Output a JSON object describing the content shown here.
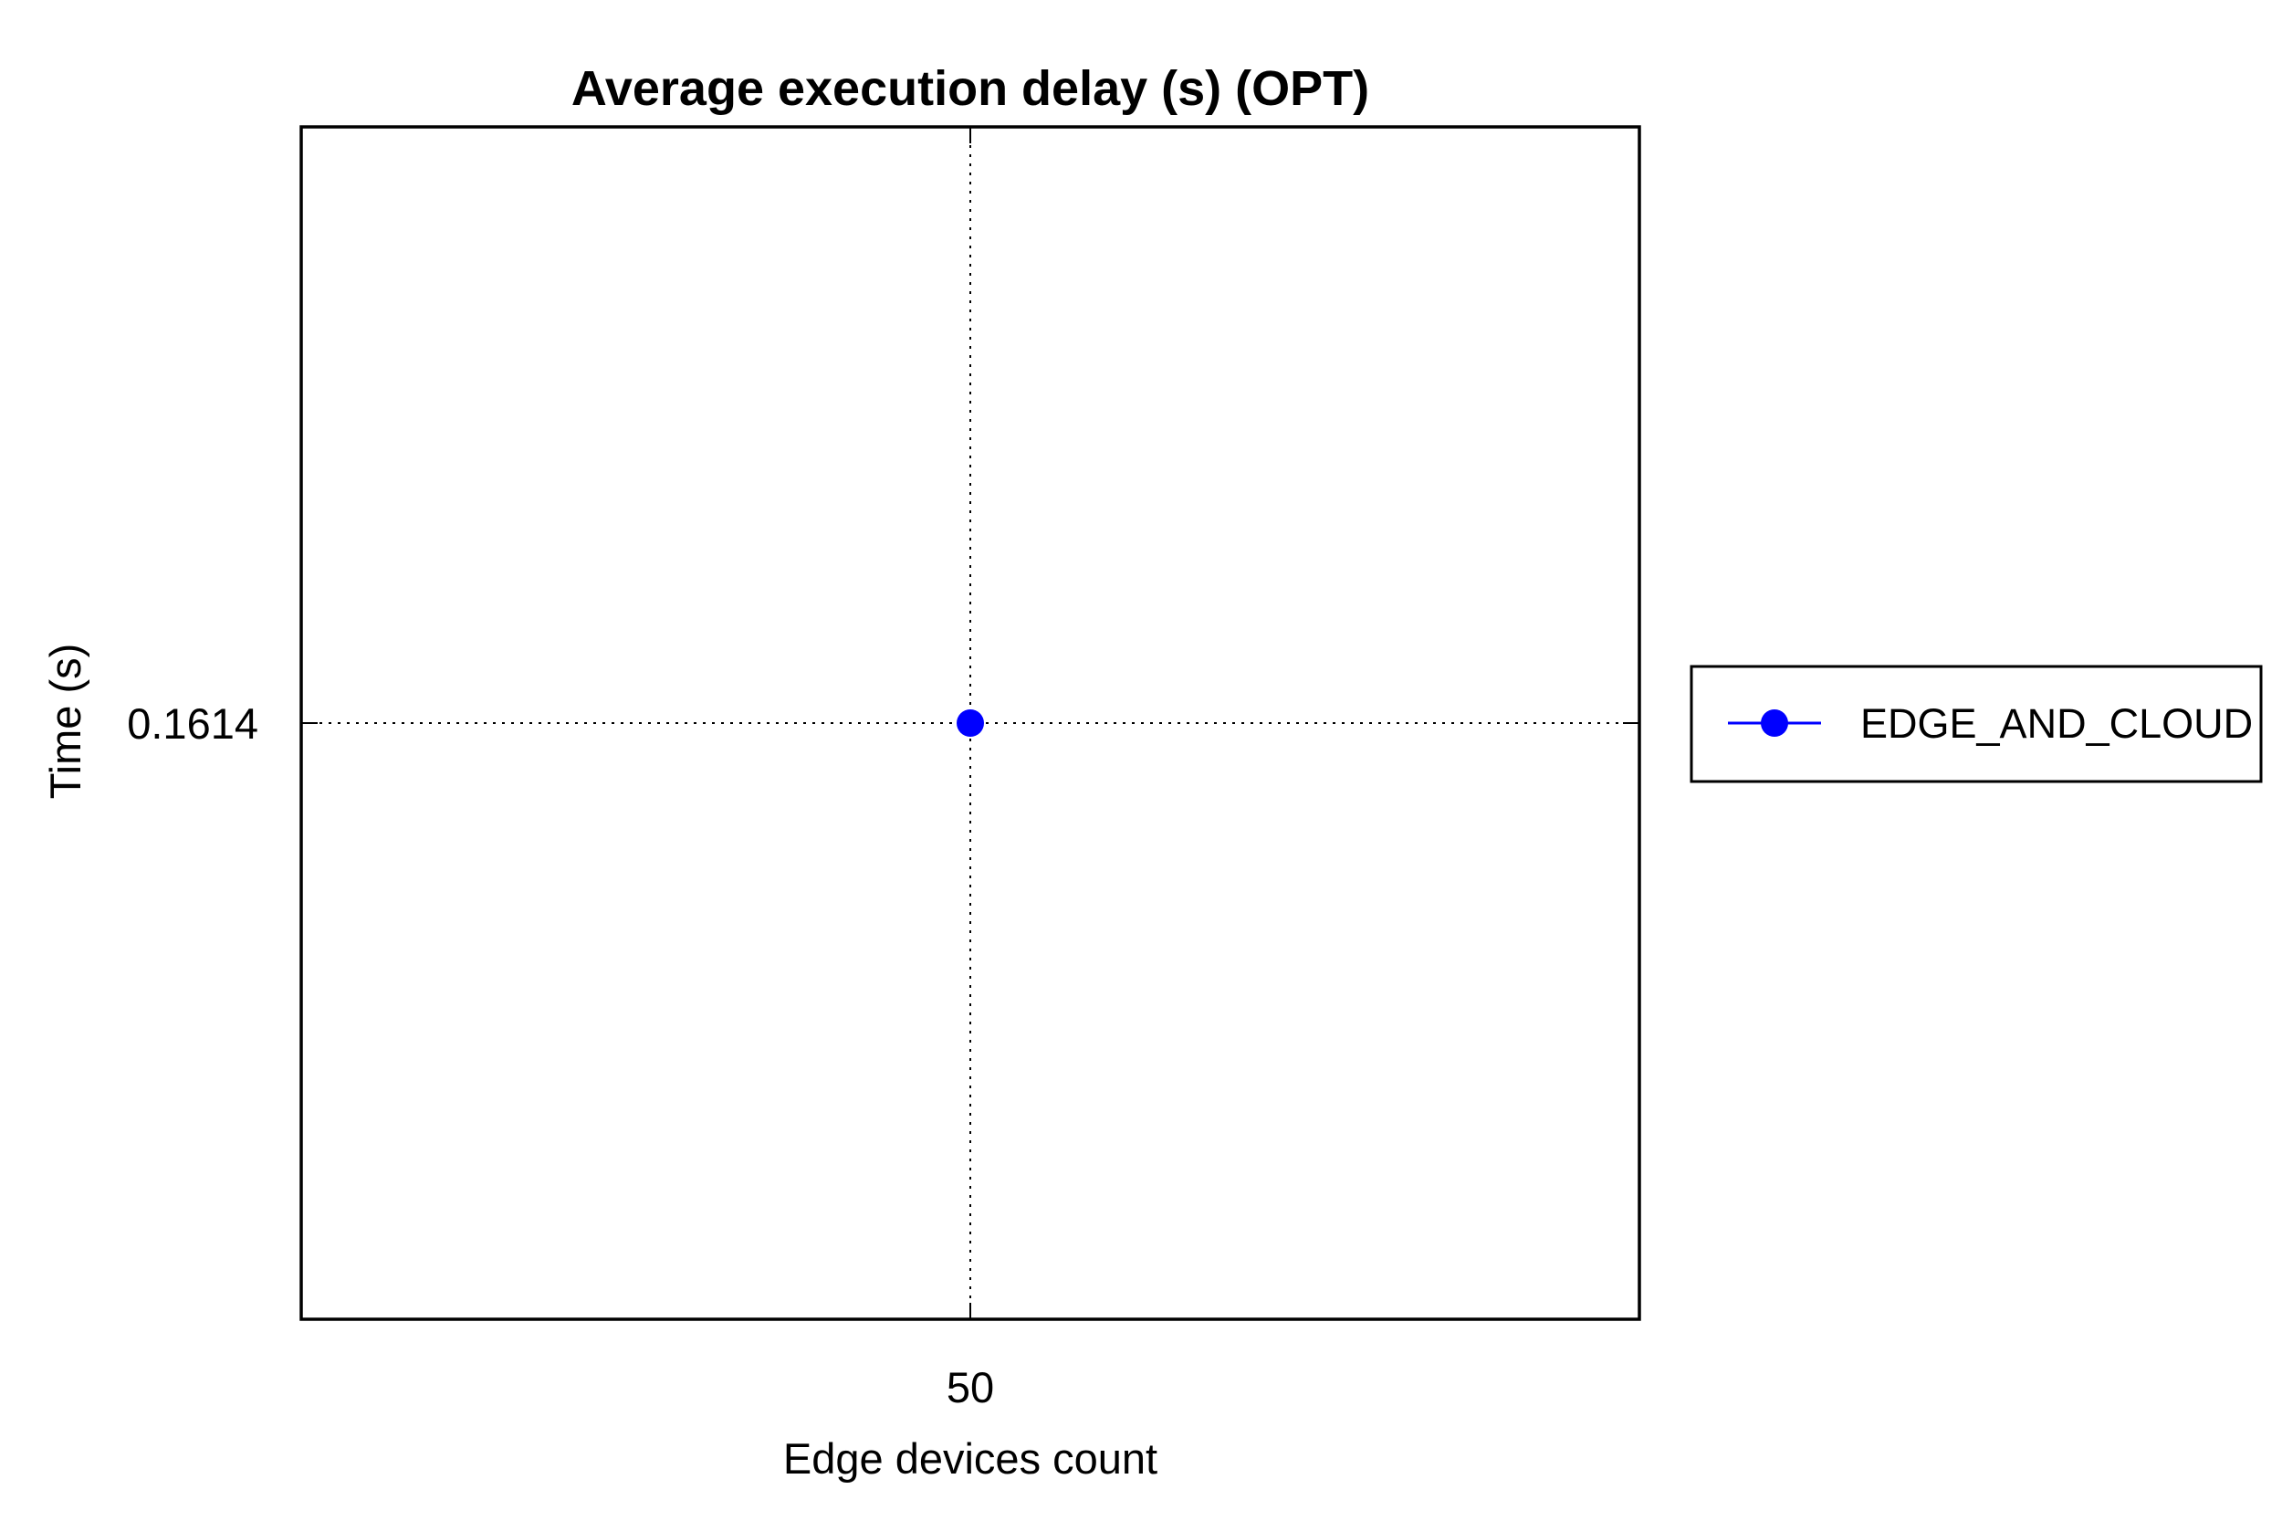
{
  "chart_data": {
    "type": "line",
    "title": "Average execution delay (s) (OPT)",
    "xlabel": "Edge devices count",
    "ylabel": "Time (s)",
    "x": [
      50
    ],
    "x_tick_labels": [
      "50"
    ],
    "y_tick_values": [
      0.1614
    ],
    "y_tick_labels": [
      "0.1614"
    ],
    "series": [
      {
        "name": "EDGE_AND_CLOUD",
        "x": [
          50
        ],
        "y": [
          0.1614
        ],
        "color": "#0000ff",
        "marker": "circle"
      }
    ],
    "grid": true,
    "grid_style": "dotted",
    "legend_position": "right",
    "colors": {
      "axis": "#000000",
      "grid": "#000000",
      "series": "#0000ff",
      "background": "#ffffff"
    }
  }
}
